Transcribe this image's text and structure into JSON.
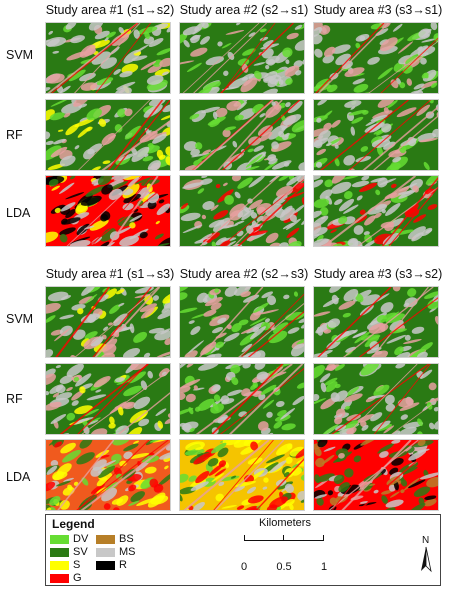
{
  "section1": {
    "headers": [
      "Study area #1 (s1→s2)",
      "Study area #2 (s2→s1)",
      "Study area #3 (s3→s1)"
    ],
    "rows": [
      "SVM",
      "RF",
      "LDA"
    ]
  },
  "section2": {
    "headers": [
      "Study area #1 (s1→s3)",
      "Study area #2 (s2→s3)",
      "Study area #3 (s3→s2)"
    ],
    "rows": [
      "SVM",
      "RF",
      "LDA"
    ]
  },
  "legend": {
    "title": "Legend",
    "items": [
      {
        "label": "DV",
        "color": "#66dd33"
      },
      {
        "label": "BS",
        "color": "#b77f28"
      },
      {
        "label": "SV",
        "color": "#2a7a14"
      },
      {
        "label": "MS",
        "color": "#c8c8c8"
      },
      {
        "label": "S",
        "color": "#ffff00"
      },
      {
        "label": "R",
        "color": "#000000"
      },
      {
        "label": "G",
        "color": "#ff0000"
      }
    ]
  },
  "scale": {
    "title": "Kilometers",
    "ticks": [
      "0",
      "0.5",
      "1"
    ]
  },
  "north": {
    "letter": "N",
    "icon": "north-arrow-icon"
  }
}
